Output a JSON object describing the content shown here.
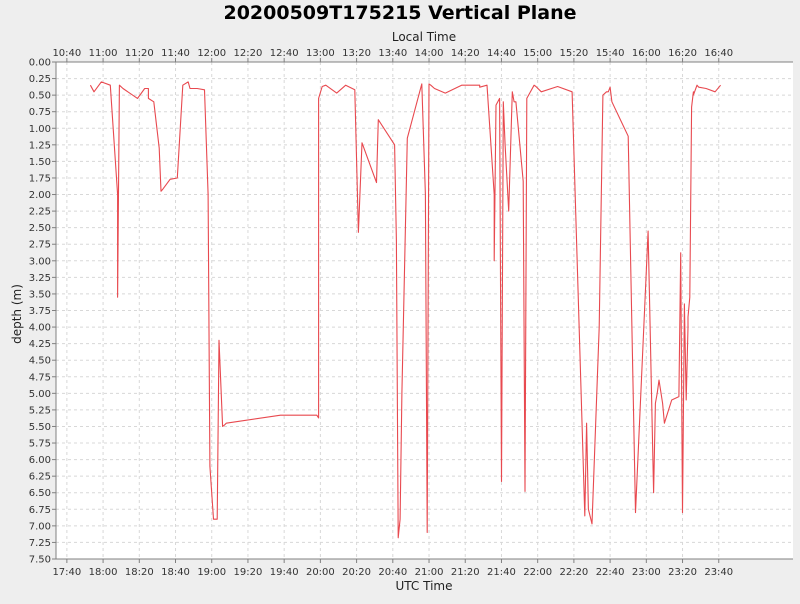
{
  "chart_data": {
    "type": "line",
    "title": "20200509T175215 Vertical Plane",
    "xlabel": "UTC Time",
    "top_xlabel": "Local Time",
    "ylabel": "depth (m)",
    "y_inverted": true,
    "ylim": [
      0,
      7.5
    ],
    "xlim": [
      "17:34",
      "00:21"
    ],
    "grid": true,
    "line_color": "#e8494f",
    "background": "#ffffff",
    "x_ticks": [
      "17:40",
      "18:00",
      "18:20",
      "18:40",
      "19:00",
      "19:20",
      "19:40",
      "20:00",
      "20:20",
      "20:40",
      "21:00",
      "21:20",
      "21:40",
      "22:00",
      "22:20",
      "22:40",
      "23:00",
      "23:20",
      "23:40"
    ],
    "top_ticks": [
      "10:40",
      "11:00",
      "11:20",
      "11:40",
      "12:00",
      "12:20",
      "12:40",
      "13:00",
      "13:20",
      "13:40",
      "14:00",
      "14:20",
      "14:40",
      "15:00",
      "15:20",
      "15:40",
      "16:00",
      "16:20",
      "16:40"
    ],
    "y_ticks": [
      "0.00",
      "0.25",
      "0.50",
      "0.75",
      "1.00",
      "1.25",
      "1.50",
      "1.75",
      "2.00",
      "2.25",
      "2.50",
      "2.75",
      "3.00",
      "3.25",
      "3.50",
      "3.75",
      "4.00",
      "4.25",
      "4.50",
      "4.75",
      "5.00",
      "5.25",
      "5.50",
      "5.75",
      "6.00",
      "6.25",
      "6.50",
      "6.75",
      "7.00",
      "7.25",
      "7.50"
    ],
    "series": [
      {
        "x": [
          "17:53",
          "17:55",
          "17:59",
          "18:04",
          "18:08",
          "18:08",
          "18:09",
          "18:11",
          "18:19",
          "18:23",
          "18:25",
          "18:25",
          "18:28",
          "18:31",
          "18:32",
          "18:33",
          "18:37",
          "18:41",
          "18:44",
          "18:47",
          "18:48",
          "18:52",
          "18:56",
          "18:58",
          "18:59",
          "19:01",
          "19:03",
          "19:04",
          "19:06",
          "19:07",
          "19:08",
          "19:38",
          "19:58",
          "19:59",
          "19:59",
          "20:01",
          "20:03",
          "20:09",
          "20:14",
          "20:19",
          "20:21",
          "20:23",
          "20:31",
          "20:32",
          "20:41",
          "20:42",
          "20:42",
          "20:43",
          "20:44",
          "20:45",
          "20:48",
          "20:56",
          "20:58",
          "20:59",
          "21:00",
          "21:01",
          "21:03",
          "21:09",
          "21:18",
          "21:28",
          "21:28",
          "21:32",
          "21:36",
          "21:36",
          "21:37",
          "21:39",
          "21:40",
          "21:41",
          "21:42",
          "21:44",
          "21:46",
          "21:47",
          "21:48",
          "21:52",
          "21:53",
          "21:54",
          "21:55",
          "21:58",
          "21:59",
          "22:02",
          "22:11",
          "22:19",
          "22:26",
          "22:27",
          "22:28",
          "22:30",
          "22:34",
          "22:36",
          "22:38",
          "22:39",
          "22:40",
          "22:41",
          "22:50",
          "22:54",
          "23:01",
          "23:04",
          "23:05",
          "23:06",
          "23:07",
          "23:09",
          "23:10",
          "23:14",
          "23:18",
          "23:19",
          "23:20",
          "23:21",
          "23:22",
          "23:22",
          "23:23",
          "23:23",
          "23:24",
          "23:25",
          "23:26",
          "23:26",
          "23:28",
          "23:29",
          "23:33",
          "23:38",
          "23:41"
        ],
        "y": [
          0.35,
          0.45,
          0.3,
          0.35,
          2.0,
          3.55,
          0.35,
          0.4,
          0.55,
          0.4,
          0.4,
          0.55,
          0.6,
          1.3,
          1.95,
          1.92,
          1.77,
          1.75,
          0.35,
          0.3,
          0.4,
          0.4,
          0.42,
          2.0,
          6.1,
          6.9,
          6.9,
          4.2,
          5.5,
          5.48,
          5.45,
          5.33,
          5.33,
          5.37,
          0.55,
          0.37,
          0.35,
          0.47,
          0.35,
          0.42,
          2.57,
          1.22,
          1.82,
          0.87,
          1.25,
          2.7,
          2.72,
          7.18,
          6.9,
          5.0,
          1.15,
          0.33,
          2.0,
          7.1,
          0.33,
          0.35,
          0.4,
          0.47,
          0.35,
          0.35,
          0.38,
          0.35,
          2.0,
          3.0,
          0.65,
          0.55,
          6.33,
          0.6,
          1.25,
          2.25,
          0.45,
          0.6,
          0.6,
          1.8,
          6.48,
          0.55,
          0.5,
          0.35,
          0.37,
          0.45,
          0.37,
          0.45,
          6.85,
          5.45,
          6.75,
          6.97,
          4.0,
          0.5,
          0.45,
          0.45,
          0.38,
          0.6,
          1.12,
          6.8,
          2.55,
          6.5,
          5.15,
          5.0,
          4.8,
          5.15,
          5.45,
          5.1,
          5.05,
          2.88,
          6.8,
          3.65,
          5.1,
          5.1,
          4.0,
          3.85,
          3.55,
          0.68,
          0.45,
          0.5,
          0.35,
          0.38,
          0.4,
          0.45,
          0.35
        ]
      }
    ]
  }
}
